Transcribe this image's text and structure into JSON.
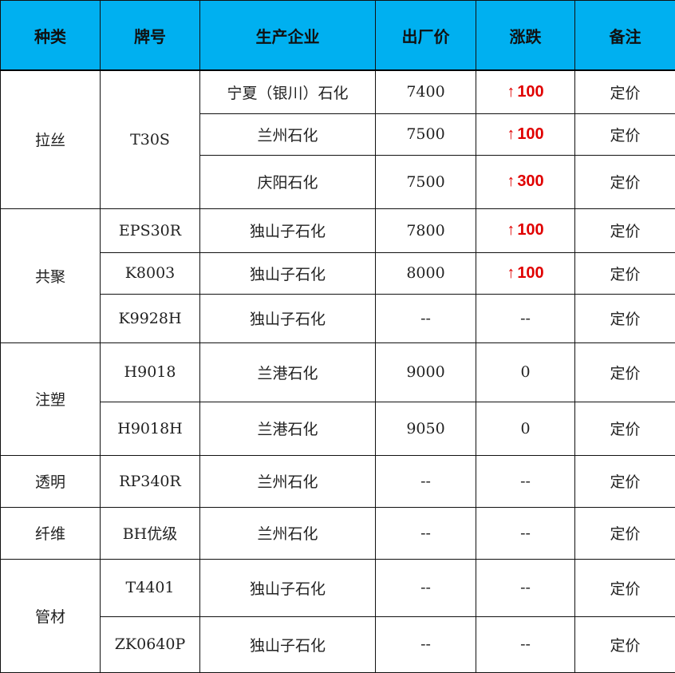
{
  "headers": [
    "种类",
    "牌号",
    "生产企业",
    "出厂价",
    "涨跌",
    "备注"
  ],
  "accent_color": "#00b0f0",
  "up_color": "#e00000",
  "groups": [
    {
      "category": "拉丝",
      "rows": [
        {
          "grade": "T30S",
          "producer": "宁夏（银川）石化",
          "price": "7400",
          "change": "100",
          "direction": "up",
          "note": "定价"
        },
        {
          "grade": null,
          "producer": "兰州石化",
          "price": "7500",
          "change": "100",
          "direction": "up",
          "note": "定价"
        },
        {
          "grade": null,
          "producer": "庆阳石化",
          "price": "7500",
          "change": "300",
          "direction": "up",
          "note": "定价"
        }
      ]
    },
    {
      "category": "共聚",
      "rows": [
        {
          "grade": "EPS30R",
          "producer": "独山子石化",
          "price": "7800",
          "change": "100",
          "direction": "up",
          "note": "定价"
        },
        {
          "grade": "K8003",
          "producer": "独山子石化",
          "price": "8000",
          "change": "100",
          "direction": "up",
          "note": "定价"
        },
        {
          "grade": "K9928H",
          "producer": "独山子石化",
          "price": "--",
          "change": "--",
          "direction": "none",
          "note": "定价"
        }
      ]
    },
    {
      "category": "注塑",
      "rows": [
        {
          "grade": "H9018",
          "producer": "兰港石化",
          "price": "9000",
          "change": "0",
          "direction": "none",
          "note": "定价"
        },
        {
          "grade": "H9018H",
          "producer": "兰港石化",
          "price": "9050",
          "change": "0",
          "direction": "none",
          "note": "定价"
        }
      ]
    },
    {
      "category": "透明",
      "rows": [
        {
          "grade": "RP340R",
          "producer": "兰州石化",
          "price": "--",
          "change": "--",
          "direction": "none",
          "note": "定价"
        }
      ]
    },
    {
      "category": "纤维",
      "rows": [
        {
          "grade": "BH优级",
          "producer": "兰州石化",
          "price": "--",
          "change": "--",
          "direction": "none",
          "note": "定价"
        }
      ]
    },
    {
      "category": "管材",
      "rows": [
        {
          "grade": "T4401",
          "producer": "独山子石化",
          "price": "--",
          "change": "--",
          "direction": "none",
          "note": "定价"
        },
        {
          "grade": "ZK0640P",
          "producer": "独山子石化",
          "price": "--",
          "change": "--",
          "direction": "none",
          "note": "定价"
        }
      ]
    }
  ]
}
